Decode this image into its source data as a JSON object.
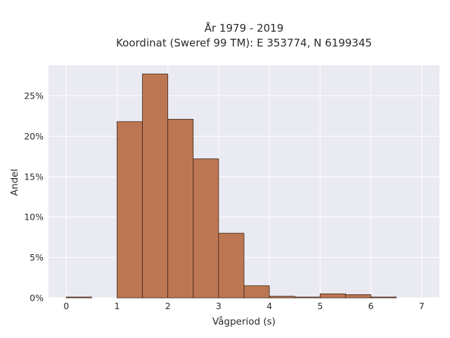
{
  "chart_data": {
    "type": "bar",
    "title_lines": [
      "År 1979 - 2019",
      "Koordinat (Sweref 99 TM): E 353774, N 6199345"
    ],
    "xlabel": "Vågperiod (s)",
    "ylabel": "Andel",
    "xlim": [
      -0.35,
      7.35
    ],
    "ylim": [
      0,
      0.2875
    ],
    "x_ticks": [
      0,
      1,
      2,
      3,
      4,
      5,
      6,
      7
    ],
    "y_ticks": [
      0,
      0.05,
      0.1,
      0.15,
      0.2,
      0.25
    ],
    "y_tick_labels": [
      "0%",
      "5%",
      "10%",
      "15%",
      "20%",
      "25%"
    ],
    "bin_width": 0.5,
    "bin_starts": [
      0,
      1,
      1.5,
      2,
      2.5,
      3,
      3.5,
      4,
      4.5,
      5,
      5.5,
      6
    ],
    "values": [
      0.001,
      0.218,
      0.277,
      0.221,
      0.172,
      0.08,
      0.015,
      0.002,
      0.001,
      0.005,
      0.004,
      0.001
    ],
    "grid": true,
    "colors": {
      "background": "#eaeaf2",
      "grid": "#ffffff",
      "bar_fill": "#bc7752",
      "bar_edge": "#3a2418",
      "text": "#2a2a2a"
    }
  }
}
